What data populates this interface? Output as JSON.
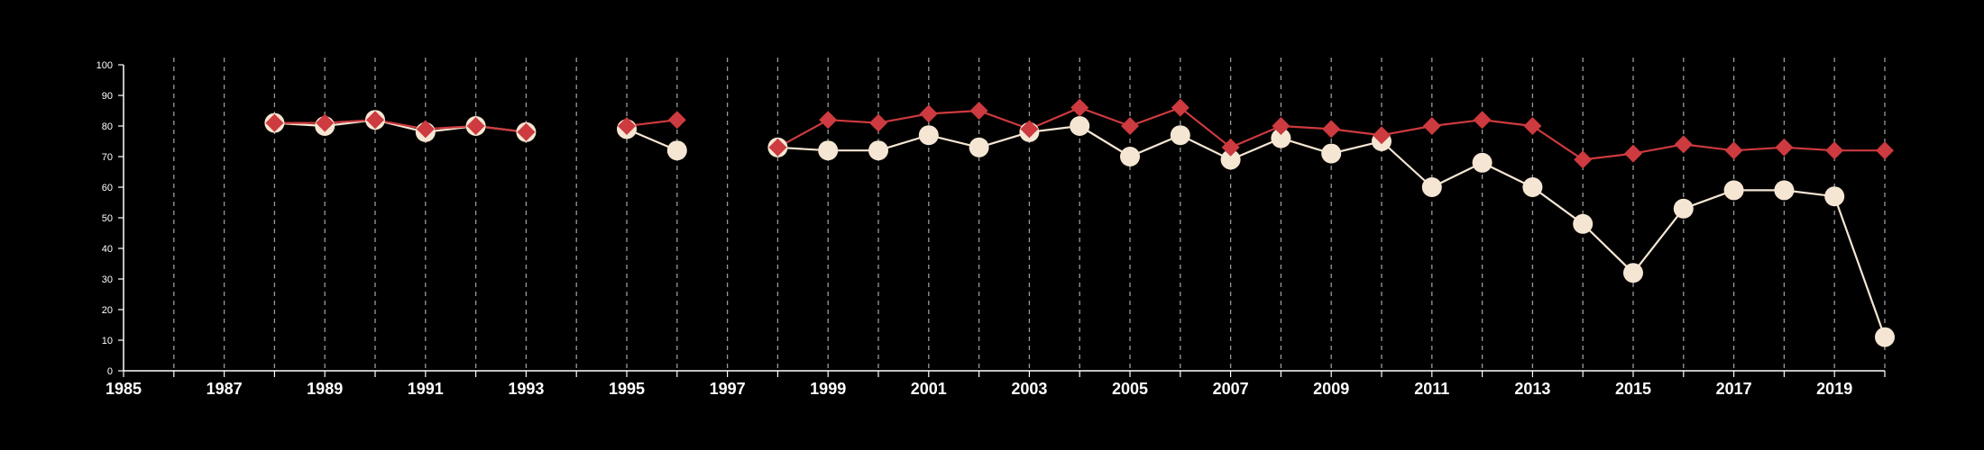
{
  "chart_data": {
    "type": "line",
    "x_range": [
      1985,
      2020
    ],
    "y_range": [
      0,
      100
    ],
    "y_ticks": [
      0,
      10,
      20,
      30,
      40,
      50,
      60,
      70,
      80,
      90,
      100
    ],
    "x_tick_labels": [
      1985,
      1987,
      1989,
      1991,
      1993,
      1995,
      1997,
      1999,
      2001,
      2003,
      2005,
      2007,
      2009,
      2011,
      2013,
      2015,
      2017,
      2019
    ],
    "vertical_gridlines": "dashed, one per year 1986-2020",
    "legend": "none",
    "series": [
      {
        "color": "#cd3a3f",
        "marker": "diamond",
        "segments": [
          [
            [
              1988,
              81
            ],
            [
              1989,
              81
            ],
            [
              1990,
              82
            ],
            [
              1991,
              79
            ],
            [
              1992,
              80
            ],
            [
              1993,
              78
            ]
          ],
          [
            [
              1995,
              80
            ],
            [
              1996,
              82
            ]
          ],
          [
            [
              1998,
              73
            ],
            [
              1999,
              82
            ],
            [
              2000,
              81
            ],
            [
              2001,
              84
            ],
            [
              2002,
              85
            ],
            [
              2003,
              79
            ],
            [
              2004,
              86
            ],
            [
              2005,
              80
            ],
            [
              2006,
              86
            ],
            [
              2007,
              73
            ],
            [
              2008,
              80
            ],
            [
              2009,
              79
            ],
            [
              2010,
              77
            ],
            [
              2011,
              80
            ],
            [
              2012,
              82
            ],
            [
              2013,
              80
            ],
            [
              2014,
              69
            ],
            [
              2015,
              71
            ],
            [
              2016,
              74
            ],
            [
              2017,
              72
            ],
            [
              2018,
              73
            ],
            [
              2019,
              72
            ],
            [
              2020,
              72
            ]
          ]
        ]
      },
      {
        "color": "#f5e6d3",
        "marker": "circle",
        "segments": [
          [
            [
              1988,
              81
            ],
            [
              1989,
              80
            ],
            [
              1990,
              82
            ],
            [
              1991,
              78
            ],
            [
              1992,
              80
            ],
            [
              1993,
              78
            ]
          ],
          [
            [
              1995,
              79
            ],
            [
              1996,
              72
            ]
          ],
          [
            [
              1998,
              73
            ],
            [
              1999,
              72
            ],
            [
              2000,
              72
            ],
            [
              2001,
              77
            ],
            [
              2002,
              73
            ],
            [
              2003,
              78
            ],
            [
              2004,
              80
            ],
            [
              2005,
              70
            ],
            [
              2006,
              77
            ],
            [
              2007,
              69
            ],
            [
              2008,
              76
            ],
            [
              2009,
              71
            ],
            [
              2010,
              75
            ],
            [
              2011,
              60
            ],
            [
              2012,
              68
            ],
            [
              2013,
              60
            ],
            [
              2014,
              48
            ],
            [
              2015,
              32
            ],
            [
              2016,
              53
            ],
            [
              2017,
              59
            ],
            [
              2018,
              59
            ],
            [
              2019,
              57
            ],
            [
              2020,
              11
            ]
          ]
        ]
      }
    ]
  }
}
